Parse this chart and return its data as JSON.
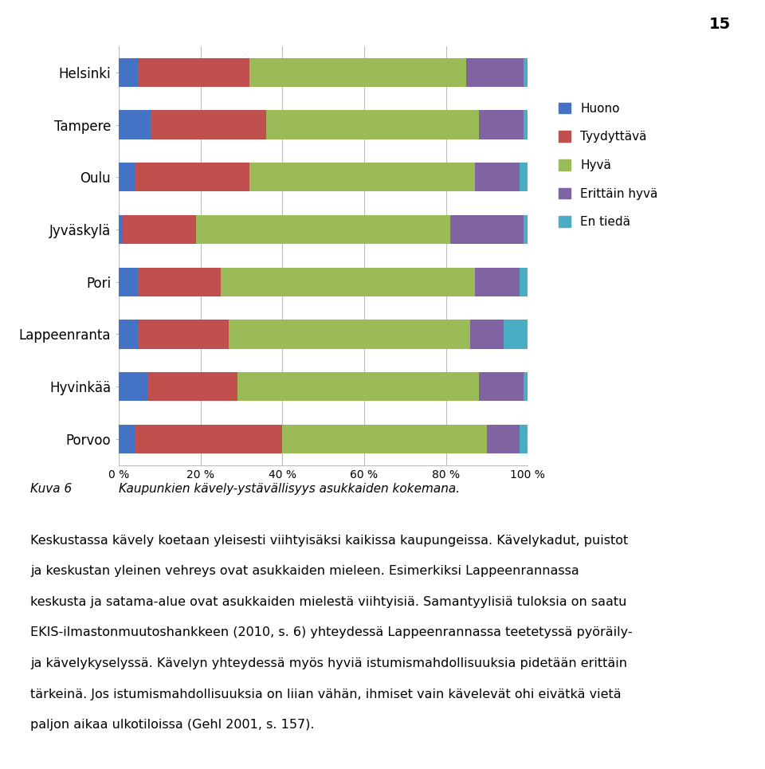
{
  "cities": [
    "Helsinki",
    "Tampere",
    "Oulu",
    "Jyväskylä",
    "Pori",
    "Lappeenranta",
    "Hyvinkää",
    "Porvoo"
  ],
  "categories": [
    "Huono",
    "Tyydyttävä",
    "Hyvä",
    "Erittäin hyvä",
    "En tiedä"
  ],
  "colors": [
    "#4472C4",
    "#C0504D",
    "#9BBB59",
    "#8064A2",
    "#4BACC6"
  ],
  "values": [
    [
      5,
      27,
      53,
      14,
      1
    ],
    [
      8,
      28,
      52,
      11,
      1
    ],
    [
      4,
      28,
      55,
      11,
      2
    ],
    [
      1,
      18,
      62,
      18,
      1
    ],
    [
      5,
      20,
      62,
      11,
      2
    ],
    [
      5,
      22,
      59,
      8,
      6
    ],
    [
      7,
      22,
      59,
      11,
      1
    ],
    [
      4,
      36,
      50,
      8,
      2
    ]
  ],
  "legend_labels": [
    "Huono",
    "Tyydyttävä",
    "Hyvä",
    "Erittäin hyvä",
    "En tiedä"
  ],
  "caption_title": "Kuva 6",
  "caption_text": "Kaupunkien kävely-ystävällisyys asukkaiden kokemana.",
  "page_number": "15",
  "body_lines": [
    "Keskustassa kävely koetaan yleisesti viihtyisäksi kaikissa kaupungeissa. Kävelykadut, puistot",
    "ja keskustan yleinen vehreys ovat asukkaiden mieleen. Esimerkiksi Lappeenrannassa",
    "keskusta ja satama-alue ovat asukkaiden mielestä viihtyisiä. Samantyylisiä tuloksia on saatu",
    "EKIS-ilmastonmuutoshankkeen (2010, s. 6) yhteydessä Lappeenrannassa teetetyssä pyöräily-",
    "ja kävelykyselyssä. Kävelyn yhteydessä myös hyviä istumismahdollisuuksia pidetään erittäin",
    "tärkeinä. Jos istumismahdollisuuksia on liian vähän, ihmiset vain kävelevät ohi eivätkä vietä",
    "paljon aikaa ulkotiloissa (Gehl 2001, s. 157)."
  ],
  "background_color": "#FFFFFF",
  "bar_height": 0.55,
  "fontsize_city": 12,
  "fontsize_legend": 11,
  "fontsize_caption": 11,
  "fontsize_body": 11.5,
  "fontsize_page": 14
}
